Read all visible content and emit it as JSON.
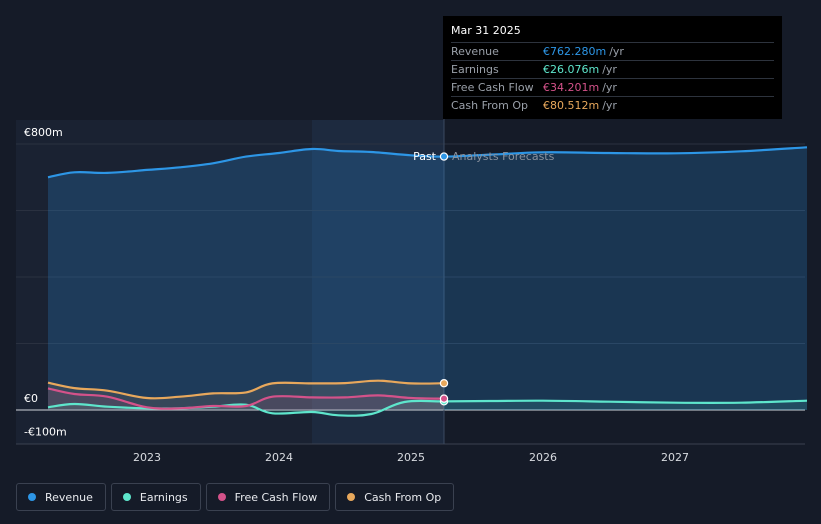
{
  "colors": {
    "revenue": "#2d96e6",
    "earnings": "#5ee6cc",
    "free_cash_flow": "#d4528a",
    "cash_from_op": "#e8a85c",
    "background": "#151b28"
  },
  "tooltip": {
    "date": "Mar 31 2025",
    "rows": [
      {
        "label": "Revenue",
        "value": "€762.280m",
        "unit": "/yr",
        "color": "#2d96e6"
      },
      {
        "label": "Earnings",
        "value": "€26.076m",
        "unit": "/yr",
        "color": "#5ee6cc"
      },
      {
        "label": "Free Cash Flow",
        "value": "€34.201m",
        "unit": "/yr",
        "color": "#d4528a"
      },
      {
        "label": "Cash From Op",
        "value": "€80.512m",
        "unit": "/yr",
        "color": "#e8a85c"
      }
    ]
  },
  "labels": {
    "past": "Past",
    "forecast": "Analysts Forecasts"
  },
  "legend": [
    {
      "label": "Revenue",
      "color": "#2d96e6"
    },
    {
      "label": "Earnings",
      "color": "#5ee6cc"
    },
    {
      "label": "Free Cash Flow",
      "color": "#d4528a"
    },
    {
      "label": "Cash From Op",
      "color": "#e8a85c"
    }
  ],
  "chart_data": {
    "type": "line",
    "xlabel": "",
    "ylabel": "",
    "y_tick_labels": [
      "€800m",
      "€0",
      "-€100m"
    ],
    "ylim": [
      -100,
      800
    ],
    "xlim": [
      2022.25,
      2028.0
    ],
    "x_ticks": [
      2023,
      2024,
      2025,
      2026,
      2027
    ],
    "x_tick_labels": [
      "2023",
      "2024",
      "2025",
      "2026",
      "2027"
    ],
    "past_forecast_divider": 2025.25,
    "grid": true,
    "legend_position": "bottom-left",
    "series": [
      {
        "name": "Revenue",
        "color": "#2d96e6",
        "x": [
          2022.25,
          2022.45,
          2022.7,
          2023.0,
          2023.25,
          2023.5,
          2023.75,
          2024.0,
          2024.25,
          2024.45,
          2024.7,
          2025.0,
          2025.25,
          2025.6,
          2026.0,
          2026.5,
          2027.0,
          2027.5,
          2028.0
        ],
        "y": [
          700,
          715,
          713,
          722,
          730,
          742,
          762,
          773,
          785,
          779,
          776,
          766,
          762,
          768,
          775,
          773,
          772,
          778,
          790
        ]
      },
      {
        "name": "Earnings",
        "color": "#5ee6cc",
        "x": [
          2022.25,
          2022.45,
          2022.7,
          2023.0,
          2023.25,
          2023.5,
          2023.75,
          2023.95,
          2024.25,
          2024.45,
          2024.7,
          2024.95,
          2025.25,
          2025.6,
          2026.0,
          2026.5,
          2027.0,
          2027.5,
          2028.0
        ],
        "y": [
          8,
          18,
          10,
          5,
          5,
          10,
          16,
          -10,
          -6,
          -16,
          -12,
          24,
          26,
          27,
          28,
          25,
          22,
          22,
          28
        ]
      },
      {
        "name": "Free Cash Flow",
        "color": "#d4528a",
        "x": [
          2022.25,
          2022.45,
          2022.7,
          2023.0,
          2023.25,
          2023.5,
          2023.75,
          2023.95,
          2024.25,
          2024.5,
          2024.75,
          2025.0,
          2025.25
        ],
        "y": [
          65,
          48,
          40,
          8,
          5,
          12,
          12,
          40,
          38,
          38,
          44,
          36,
          34
        ]
      },
      {
        "name": "Cash From Op",
        "color": "#e8a85c",
        "x": [
          2022.25,
          2022.45,
          2022.7,
          2023.0,
          2023.25,
          2023.5,
          2023.75,
          2023.95,
          2024.25,
          2024.5,
          2024.75,
          2025.0,
          2025.25
        ],
        "y": [
          82,
          66,
          58,
          36,
          40,
          50,
          53,
          80,
          80,
          81,
          88,
          80,
          80.5
        ]
      }
    ]
  }
}
